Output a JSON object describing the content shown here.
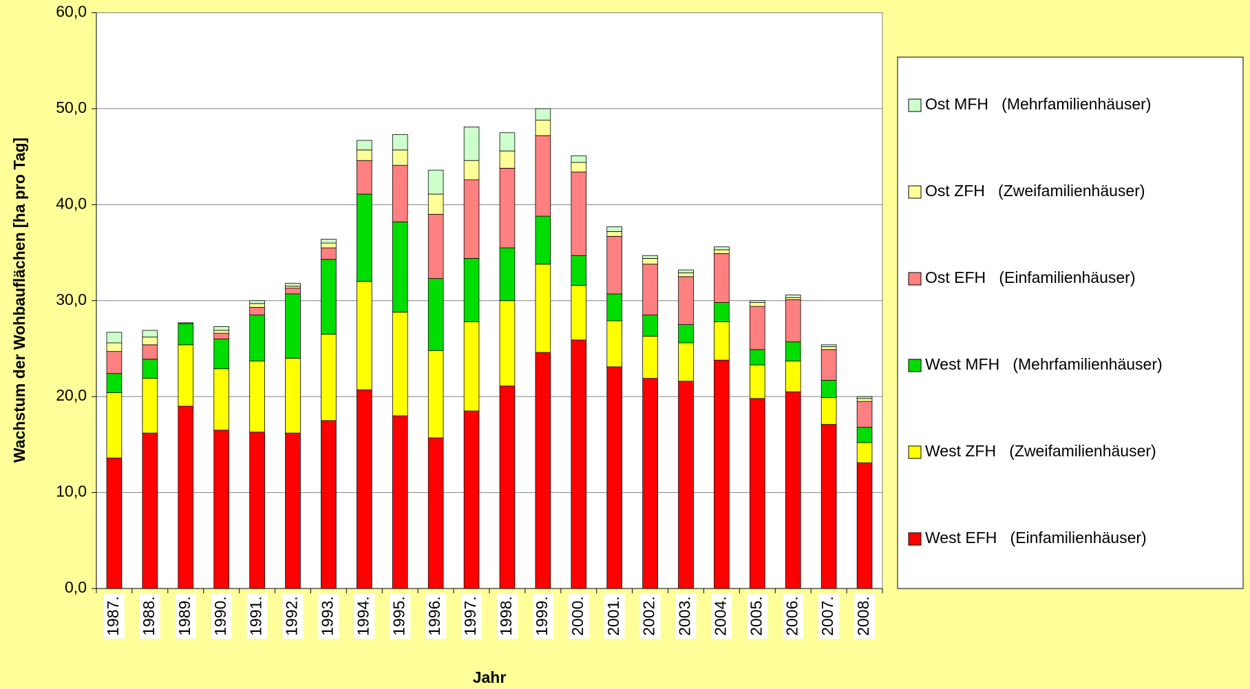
{
  "chart_data": {
    "type": "stacked_bar",
    "y_label": "Wachstum der Wohbauflächen [ha pro Tag]",
    "x_label": "Jahr",
    "categories": [
      "1987.",
      "1988.",
      "1989.",
      "1990.",
      "1991.",
      "1992.",
      "1993.",
      "1994.",
      "1995.",
      "1996.",
      "1997.",
      "1998.",
      "1999.",
      "2000.",
      "2001.",
      "2002.",
      "2003.",
      "2004.",
      "2005.",
      "2006.",
      "2007.",
      "2008."
    ],
    "series": [
      {
        "name": "West EFH   (Einfamilienhäuser)",
        "color": "#ff0000",
        "values": [
          13.6,
          16.2,
          19.0,
          16.5,
          16.3,
          16.2,
          17.5,
          20.7,
          18.0,
          15.7,
          18.5,
          21.1,
          24.6,
          25.9,
          23.1,
          21.9,
          21.6,
          23.8,
          19.8,
          20.5,
          17.1,
          13.1
        ]
      },
      {
        "name": "West ZFH   (Zweifamilienhäuser)",
        "color": "#ffff00",
        "values": [
          6.8,
          5.7,
          6.4,
          6.4,
          7.4,
          7.8,
          9.0,
          11.3,
          10.8,
          9.1,
          9.3,
          8.9,
          9.2,
          5.7,
          4.8,
          4.4,
          4.0,
          4.0,
          3.5,
          3.2,
          2.8,
          2.1
        ]
      },
      {
        "name": "West MFH   (Mehrfamilienhäuser)",
        "color": "#00dd00",
        "values": [
          2.0,
          2.0,
          2.2,
          3.1,
          4.8,
          6.7,
          7.8,
          9.1,
          9.4,
          7.5,
          6.6,
          5.5,
          5.0,
          3.1,
          2.8,
          2.2,
          1.9,
          2.0,
          1.6,
          2.0,
          1.8,
          1.6
        ]
      },
      {
        "name": "Ost EFH   (Einfamilienhäuser)",
        "color": "#ff8080",
        "values": [
          2.3,
          1.5,
          0.1,
          0.6,
          0.8,
          0.6,
          1.2,
          3.5,
          5.9,
          6.7,
          8.2,
          8.3,
          8.4,
          8.7,
          6.0,
          5.3,
          5.0,
          5.1,
          4.5,
          4.4,
          3.2,
          2.7
        ]
      },
      {
        "name": "Ost ZFH   (Zweifamilienhäuser)",
        "color": "#ffff99",
        "values": [
          0.9,
          0.8,
          0.0,
          0.3,
          0.4,
          0.2,
          0.5,
          1.1,
          1.6,
          2.1,
          2.0,
          1.8,
          1.6,
          1.0,
          0.5,
          0.6,
          0.4,
          0.4,
          0.4,
          0.2,
          0.3,
          0.3
        ]
      },
      {
        "name": "Ost MFH   (Mehrfamilienhäuser)",
        "color": "#ccffcc",
        "values": [
          1.1,
          0.7,
          0.0,
          0.4,
          0.3,
          0.3,
          0.4,
          1.0,
          1.6,
          2.5,
          3.5,
          1.9,
          1.2,
          0.7,
          0.5,
          0.3,
          0.3,
          0.3,
          0.2,
          0.3,
          0.2,
          0.2
        ]
      }
    ],
    "ylim": [
      0,
      60
    ],
    "yticks": [
      {
        "value": 0,
        "label": "0,0"
      },
      {
        "value": 10,
        "label": "10,0"
      },
      {
        "value": 20,
        "label": "20,0"
      },
      {
        "value": 30,
        "label": "30,0"
      },
      {
        "value": 40,
        "label": "40,0"
      },
      {
        "value": 50,
        "label": "50,0"
      },
      {
        "value": 60,
        "label": "60,0"
      }
    ],
    "grid": true,
    "legend": "right"
  }
}
